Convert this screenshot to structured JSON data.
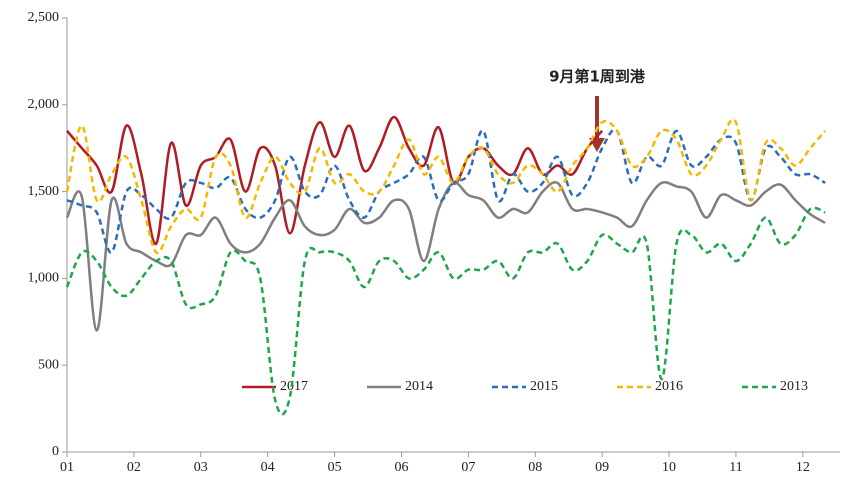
{
  "chart_data": {
    "type": "line",
    "annotation": "9月第1周到港",
    "x": [
      1,
      2,
      3,
      4,
      5,
      6,
      7,
      8,
      9,
      10,
      11,
      12,
      13,
      14,
      15,
      16,
      17,
      18,
      19,
      20,
      21,
      22,
      23,
      24,
      25,
      26,
      27,
      28,
      29,
      30,
      31,
      32,
      33,
      34,
      35,
      36,
      37,
      38,
      39,
      40,
      41,
      42,
      43,
      44,
      45,
      46,
      47,
      48,
      49,
      50,
      51,
      52
    ],
    "xlim": [
      1,
      53
    ],
    "xticks": [
      {
        "value": 1,
        "label": "01"
      },
      {
        "value": 5.5,
        "label": "02"
      },
      {
        "value": 10,
        "label": "03"
      },
      {
        "value": 14.5,
        "label": "04"
      },
      {
        "value": 19,
        "label": "05"
      },
      {
        "value": 23.5,
        "label": "06"
      },
      {
        "value": 28,
        "label": "07"
      },
      {
        "value": 32.5,
        "label": "08"
      },
      {
        "value": 37,
        "label": "09"
      },
      {
        "value": 41.5,
        "label": "10"
      },
      {
        "value": 46,
        "label": "11"
      },
      {
        "value": 50.5,
        "label": "12"
      }
    ],
    "ylim": [
      0,
      2500
    ],
    "yticks": [
      0,
      500,
      {
        "value": 1000,
        "label": "1,000"
      },
      {
        "value": 1500,
        "label": "1,500"
      },
      {
        "value": 2000,
        "label": "2,000"
      },
      {
        "value": 2500,
        "label": "2,500"
      }
    ],
    "series": [
      {
        "name": "2017",
        "color": "#b01c22",
        "dash": false,
        "values": [
          1850,
          1750,
          1650,
          1500,
          1880,
          1600,
          1200,
          1780,
          1420,
          1650,
          1700,
          1800,
          1500,
          1750,
          1650,
          1260,
          1650,
          1900,
          1700,
          1880,
          1620,
          1750,
          1930,
          1750,
          1650,
          1870,
          1550,
          1700,
          1750,
          1650,
          1600,
          1750,
          1600,
          1650,
          1600,
          1750,
          1850,
          null,
          null,
          null,
          null,
          null,
          null,
          null,
          null,
          null,
          null,
          null,
          null,
          null,
          null,
          null
        ]
      },
      {
        "name": "2014",
        "color": "#7f7f7f",
        "dash": false,
        "values": [
          1350,
          1470,
          700,
          1450,
          1200,
          1150,
          1100,
          1080,
          1250,
          1250,
          1350,
          1200,
          1150,
          1200,
          1350,
          1450,
          1300,
          1250,
          1280,
          1400,
          1320,
          1350,
          1450,
          1400,
          1100,
          1400,
          1550,
          1480,
          1450,
          1350,
          1400,
          1380,
          1500,
          1550,
          1400,
          1400,
          1380,
          1350,
          1300,
          1450,
          1550,
          1530,
          1500,
          1350,
          1480,
          1450,
          1420,
          1500,
          1540,
          1450,
          1370,
          1320
        ]
      },
      {
        "name": "2015",
        "color": "#2a6ebb",
        "dash": true,
        "values": [
          1450,
          1420,
          1380,
          1150,
          1500,
          1480,
          1400,
          1350,
          1550,
          1550,
          1520,
          1580,
          1400,
          1350,
          1450,
          1700,
          1500,
          1480,
          1650,
          1450,
          1350,
          1500,
          1550,
          1600,
          1700,
          1450,
          1550,
          1600,
          1850,
          1450,
          1600,
          1500,
          1550,
          1700,
          1480,
          1550,
          1750,
          1850,
          1550,
          1700,
          1650,
          1850,
          1650,
          1700,
          1800,
          1780,
          1450,
          1750,
          1700,
          1600,
          1600,
          1550
        ]
      },
      {
        "name": "2016",
        "color": "#f5b800",
        "dash": true,
        "values": [
          1500,
          1880,
          1450,
          1600,
          1700,
          1450,
          1150,
          1300,
          1400,
          1350,
          1700,
          1650,
          1350,
          1550,
          1700,
          1550,
          1500,
          1750,
          1550,
          1600,
          1500,
          1500,
          1650,
          1800,
          1600,
          1700,
          1550,
          1700,
          1750,
          1600,
          1550,
          1650,
          1600,
          1500,
          1650,
          1750,
          1900,
          1850,
          1650,
          1700,
          1850,
          1800,
          1600,
          1650,
          1800,
          1900,
          1450,
          1780,
          1750,
          1650,
          1750,
          1850
        ]
      },
      {
        "name": "2013",
        "color": "#1fa64a",
        "dash": true,
        "values": [
          950,
          1150,
          1100,
          950,
          900,
          1000,
          1100,
          1100,
          850,
          850,
          900,
          1150,
          1100,
          1000,
          300,
          320,
          1100,
          1150,
          1150,
          1100,
          950,
          1100,
          1100,
          1000,
          1050,
          1150,
          1000,
          1050,
          1050,
          1100,
          1000,
          1150,
          1150,
          1200,
          1050,
          1100,
          1250,
          1200,
          1150,
          1200,
          420,
          1200,
          1250,
          1150,
          1200,
          1100,
          1200,
          1350,
          1200,
          1250,
          1400,
          1380
        ]
      }
    ]
  }
}
